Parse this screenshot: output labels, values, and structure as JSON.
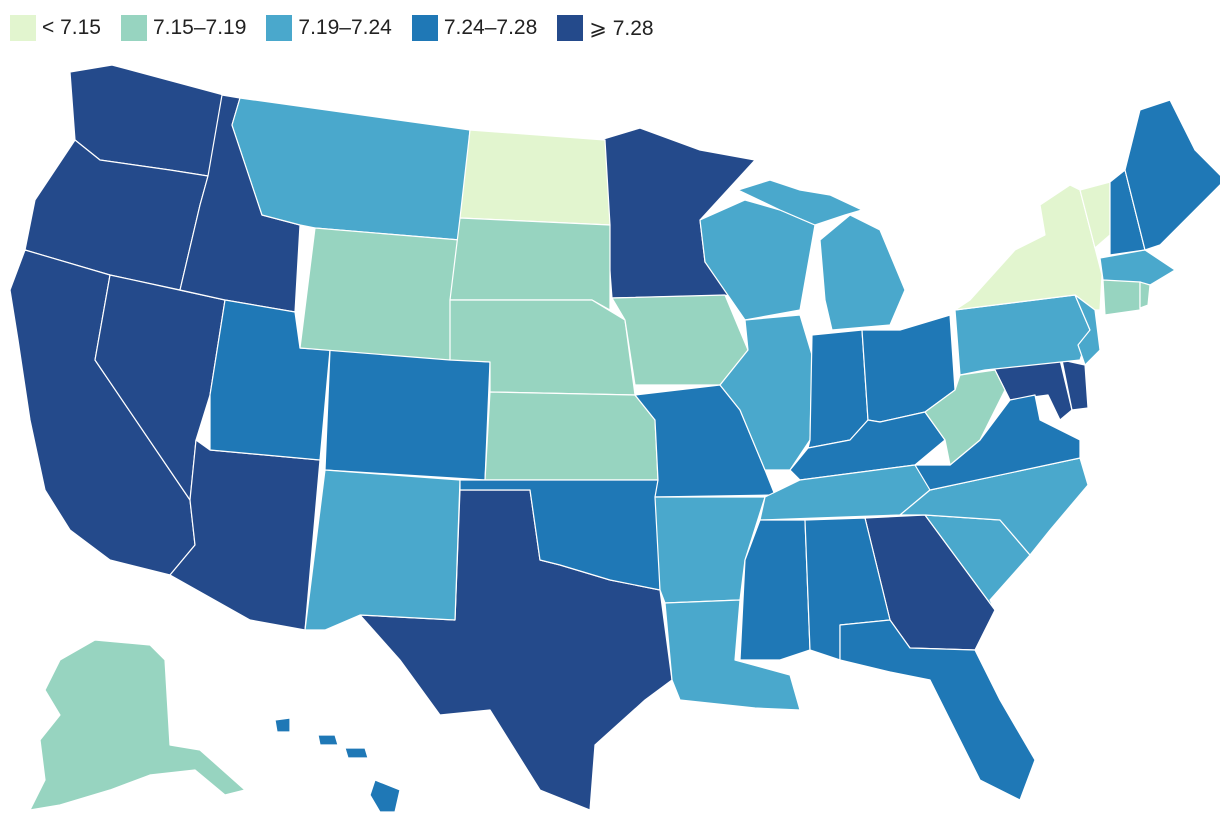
{
  "legend": {
    "items": [
      {
        "label": "< 7.15",
        "color": "#e2f5cf"
      },
      {
        "label": "7.15–7.19",
        "color": "#97d4c0"
      },
      {
        "label": "7.19–7.24",
        "color": "#4aa8cc"
      },
      {
        "label": "7.24–7.28",
        "color": "#1f78b6"
      },
      {
        "label": "⩾ 7.28",
        "color": "#244a8b"
      }
    ]
  },
  "map": {
    "type": "choropleth",
    "region": "United States",
    "states": [
      {
        "name": "Washington",
        "bin": 4
      },
      {
        "name": "Oregon",
        "bin": 4
      },
      {
        "name": "California",
        "bin": 4
      },
      {
        "name": "Nevada",
        "bin": 4
      },
      {
        "name": "Idaho",
        "bin": 4
      },
      {
        "name": "Arizona",
        "bin": 4
      },
      {
        "name": "Texas",
        "bin": 4
      },
      {
        "name": "Minnesota",
        "bin": 4
      },
      {
        "name": "Georgia",
        "bin": 4
      },
      {
        "name": "Maryland",
        "bin": 4
      },
      {
        "name": "Delaware",
        "bin": 4
      },
      {
        "name": "Montana",
        "bin": 2
      },
      {
        "name": "Utah",
        "bin": 3
      },
      {
        "name": "Colorado",
        "bin": 3
      },
      {
        "name": "New Mexico",
        "bin": 2
      },
      {
        "name": "Wyoming",
        "bin": 1
      },
      {
        "name": "North Dakota",
        "bin": 0
      },
      {
        "name": "South Dakota",
        "bin": 1
      },
      {
        "name": "Nebraska",
        "bin": 1
      },
      {
        "name": "Kansas",
        "bin": 1
      },
      {
        "name": "Oklahoma",
        "bin": 3
      },
      {
        "name": "Iowa",
        "bin": 1
      },
      {
        "name": "Missouri",
        "bin": 3
      },
      {
        "name": "Arkansas",
        "bin": 2
      },
      {
        "name": "Louisiana",
        "bin": 2
      },
      {
        "name": "Wisconsin",
        "bin": 2
      },
      {
        "name": "Michigan",
        "bin": 2
      },
      {
        "name": "Illinois",
        "bin": 2
      },
      {
        "name": "Indiana",
        "bin": 3
      },
      {
        "name": "Ohio",
        "bin": 3
      },
      {
        "name": "Kentucky",
        "bin": 3
      },
      {
        "name": "Tennessee",
        "bin": 2
      },
      {
        "name": "Mississippi",
        "bin": 3
      },
      {
        "name": "Alabama",
        "bin": 3
      },
      {
        "name": "Florida",
        "bin": 3
      },
      {
        "name": "South Carolina",
        "bin": 2
      },
      {
        "name": "North Carolina",
        "bin": 2
      },
      {
        "name": "Virginia",
        "bin": 3
      },
      {
        "name": "West Virginia",
        "bin": 1
      },
      {
        "name": "Pennsylvania",
        "bin": 2
      },
      {
        "name": "New York",
        "bin": 0
      },
      {
        "name": "New Jersey",
        "bin": 2
      },
      {
        "name": "Vermont",
        "bin": 0
      },
      {
        "name": "New Hampshire",
        "bin": 3
      },
      {
        "name": "Maine",
        "bin": 3
      },
      {
        "name": "Massachusetts",
        "bin": 2
      },
      {
        "name": "Connecticut",
        "bin": 1
      },
      {
        "name": "Rhode Island",
        "bin": 1
      },
      {
        "name": "Alaska",
        "bin": 1
      },
      {
        "name": "Hawaii",
        "bin": 3
      }
    ]
  }
}
